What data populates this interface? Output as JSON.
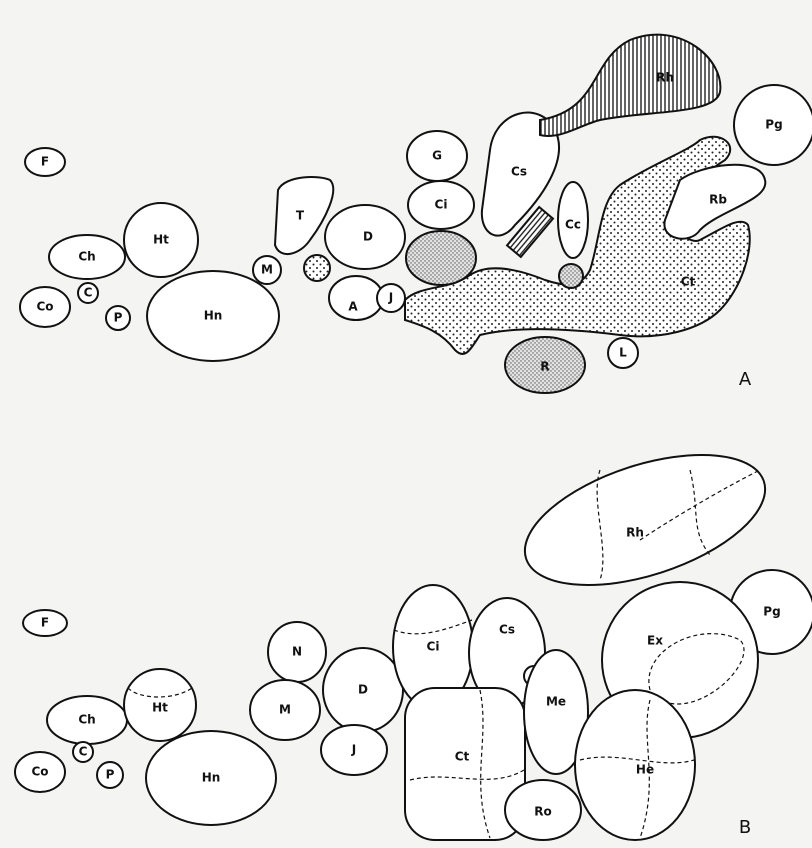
{
  "panels": [
    {
      "label": "A",
      "regions": [
        "F",
        "Ch",
        "Ht",
        "Co",
        "C",
        "P",
        "Hn",
        "M",
        "T",
        "D",
        "A",
        "J",
        "G",
        "Ci",
        "Cs",
        "Rh",
        "Pg",
        "Rb",
        "Cc",
        "Ct",
        "R",
        "L"
      ]
    },
    {
      "label": "B",
      "regions": [
        "F",
        "Ch",
        "Ht",
        "Co",
        "C",
        "P",
        "Hn",
        "N",
        "M",
        "D",
        "J",
        "Ci",
        "Cs",
        "Rh",
        "Pg",
        "Ex",
        "Me",
        "He",
        "Ct",
        "Ro"
      ]
    }
  ]
}
